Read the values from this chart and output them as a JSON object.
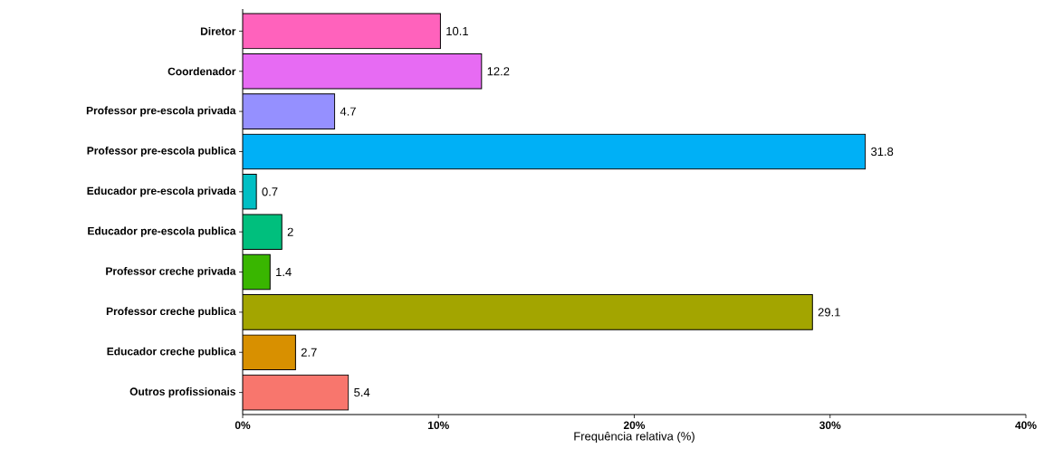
{
  "chart_data": {
    "type": "bar",
    "orientation": "horizontal",
    "xlabel": "Frequência relativa (%)",
    "categories": [
      "Diretor",
      "Coordenador",
      "Professor pre-escola privada",
      "Professor pre-escola publica",
      "Educador pre-escola privada",
      "Educador pre-escola publica",
      "Professor creche privada",
      "Professor creche publica",
      "Educador creche publica",
      "Outros profissionais"
    ],
    "values": [
      10.1,
      12.2,
      4.7,
      31.8,
      0.7,
      2,
      1.4,
      29.1,
      2.7,
      5.4
    ],
    "colors": [
      "#FF62BC",
      "#E76BF3",
      "#9590FF",
      "#00B0F6",
      "#00BFC4",
      "#00BF7D",
      "#39B600",
      "#A3A500",
      "#D89000",
      "#F8766D"
    ],
    "xlim": [
      0,
      40
    ],
    "xticks": [
      {
        "value": 0,
        "label": "0%"
      },
      {
        "value": 10,
        "label": "10%"
      },
      {
        "value": 20,
        "label": "20%"
      },
      {
        "value": 30,
        "label": "30%"
      },
      {
        "value": 40,
        "label": "40%"
      }
    ],
    "data_labels": true,
    "grid": false
  }
}
